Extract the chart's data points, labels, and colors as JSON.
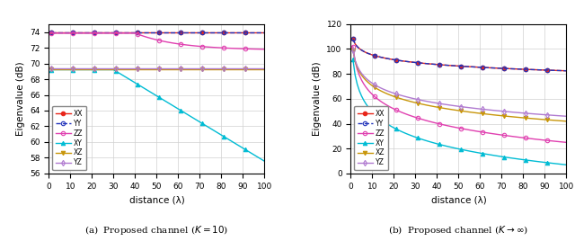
{
  "colors": {
    "XX": "#e8251a",
    "YY": "#2233bb",
    "ZZ": "#e040b0",
    "XY": "#00bcd4",
    "XZ": "#c8960a",
    "YZ": "#b07ad0"
  },
  "markers": {
    "XX": "o",
    "YY": "o",
    "ZZ": "o",
    "XY": "^",
    "XZ": "v",
    "YZ": "d"
  },
  "linestyles": {
    "XX": "-",
    "YY": "--",
    "ZZ": "-",
    "XY": "-",
    "XZ": "-",
    "YZ": "-"
  },
  "markerfilled": {
    "XX": true,
    "YY": false,
    "ZZ": false,
    "XY": true,
    "XZ": true,
    "YZ": false
  },
  "subplot_a": {
    "ylabel": "Eigenvalue (dB)",
    "xlabel": "distance (λ)",
    "ylim": [
      56,
      75
    ],
    "yticks": [
      56,
      58,
      60,
      62,
      64,
      66,
      68,
      70,
      72,
      74
    ],
    "xlim": [
      0,
      100
    ],
    "xticks": [
      0,
      10,
      20,
      30,
      40,
      50,
      60,
      70,
      80,
      90,
      100
    ]
  },
  "subplot_b": {
    "ylabel": "Eigenvalue (dB)",
    "xlabel": "distance (λ)",
    "ylim": [
      0,
      120
    ],
    "yticks": [
      0,
      20,
      40,
      60,
      80,
      100,
      120
    ],
    "xlim": [
      0,
      100
    ],
    "xticks": [
      0,
      10,
      20,
      30,
      40,
      50,
      60,
      70,
      80,
      90,
      100
    ]
  },
  "title_a": "(a)  Proposed channel ($K = 10$)",
  "title_b": "(b)  Proposed channel ($K \\to \\infty$)"
}
